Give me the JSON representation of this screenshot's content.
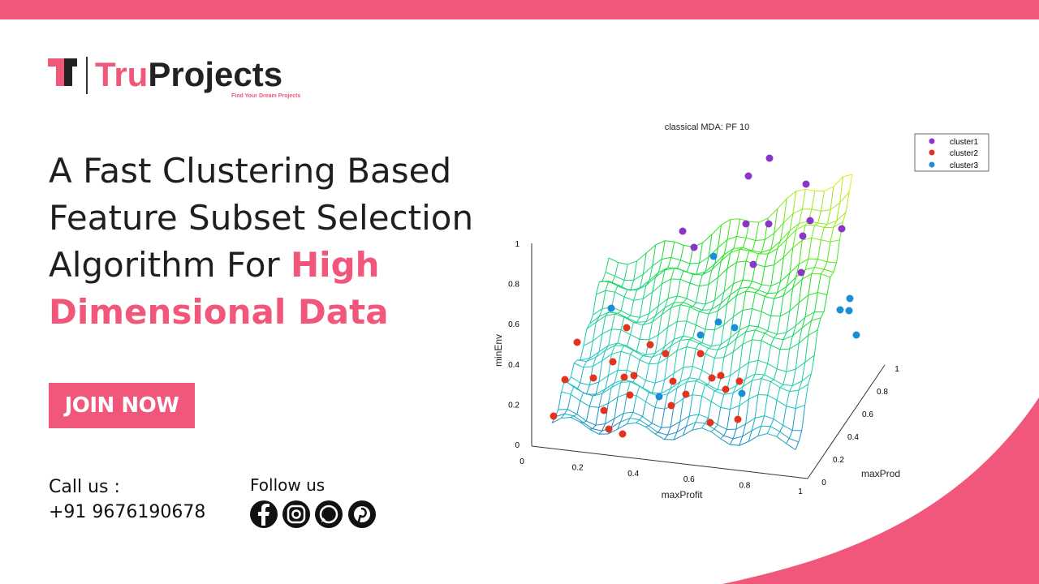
{
  "logo": {
    "brand_first": "Tru",
    "brand_second": "Projects",
    "tagline": "Find Your Dream Projects"
  },
  "headline": {
    "plain": "A Fast Clustering Based Feature Subset Selection Algorithm For",
    "highlight": "High Dimensional Data"
  },
  "cta": "JOIN NOW",
  "contact": {
    "label": "Call us :",
    "phone": "+91 9676190678"
  },
  "social": {
    "label": "Follow us"
  },
  "figure": {
    "title": "classical MDA: PF 10",
    "z_label": "minEnv",
    "x_label": "maxProfit",
    "y_label": "maxProd",
    "z_ticks": [
      "0",
      "0.2",
      "0.4",
      "0.6",
      "0.8",
      "1"
    ],
    "x_ticks": [
      "0",
      "0.2",
      "0.4",
      "0.6",
      "0.8",
      "1"
    ],
    "y_ticks": [
      "0",
      "0.2",
      "0.4",
      "0.6",
      "0.8",
      "1"
    ],
    "legend": [
      "cluster1",
      "cluster2",
      "cluster3"
    ]
  }
}
